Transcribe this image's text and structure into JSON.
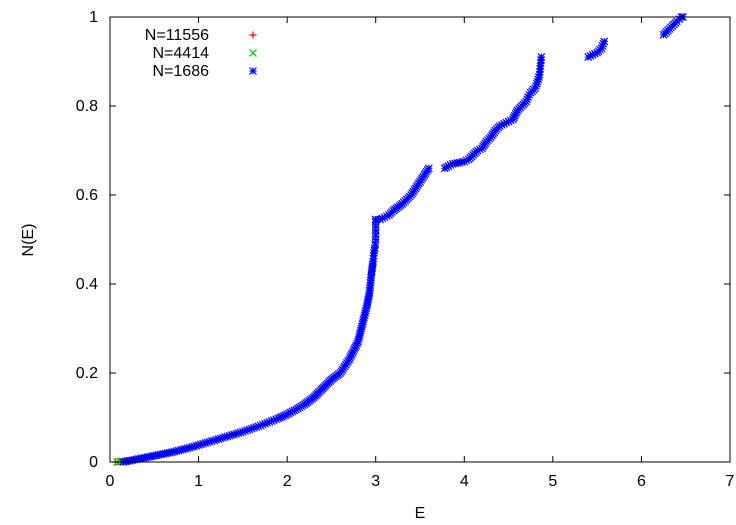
{
  "chart_data": {
    "type": "scatter",
    "title": "",
    "xlabel": "E",
    "ylabel": "N(E)",
    "xlim": [
      0,
      7
    ],
    "ylim": [
      0,
      1
    ],
    "xticks": [
      "0",
      "1",
      "2",
      "3",
      "4",
      "5",
      "6",
      "7"
    ],
    "yticks": [
      "0",
      "0.2",
      "0.4",
      "0.6",
      "0.8",
      "1"
    ],
    "grid": false,
    "legend_position": "top-left",
    "series": [
      {
        "name": "N=11556",
        "marker": "+",
        "color": "#ff0000",
        "x": [
          0.06,
          0.09,
          0.12,
          0.15
        ],
        "y": [
          0.0,
          0.0005,
          0.001,
          0.0015
        ]
      },
      {
        "name": "N=4414",
        "marker": "x",
        "color": "#00c000",
        "x": [
          0.08,
          0.11,
          0.14,
          0.18,
          0.22
        ],
        "y": [
          0.0,
          0.001,
          0.0015,
          0.002,
          0.003
        ]
      },
      {
        "name": "N=1686",
        "marker": "*",
        "color": "#0000ff",
        "x": [
          0.15,
          0.2,
          0.3,
          0.4,
          0.5,
          0.6,
          0.7,
          0.8,
          0.9,
          1.0,
          1.1,
          1.2,
          1.3,
          1.4,
          1.5,
          1.6,
          1.7,
          1.8,
          1.9,
          2.0,
          2.1,
          2.2,
          2.3,
          2.4,
          2.5,
          2.6,
          2.7,
          2.75,
          2.8,
          2.85,
          2.9,
          2.93,
          2.95,
          2.97,
          2.98,
          2.99,
          2.995,
          3.0,
          3.0,
          3.0,
          3.0,
          3.0,
          3.0,
          3.0,
          3.05,
          3.1,
          3.15,
          3.2,
          3.3,
          3.35,
          3.4,
          3.45,
          3.5,
          3.55,
          3.6,
          3.78,
          3.82,
          3.87,
          4.0,
          4.05,
          4.1,
          4.15,
          4.2,
          4.25,
          4.3,
          4.35,
          4.4,
          4.45,
          4.5,
          4.55,
          4.6,
          4.65,
          4.7,
          4.72,
          4.75,
          4.8,
          4.82,
          4.85,
          4.86,
          4.87,
          5.4,
          5.45,
          5.5,
          5.55,
          5.58,
          6.25,
          6.3,
          6.35,
          6.4,
          6.43,
          6.45,
          6.47
        ],
        "y": [
          0.0,
          0.002,
          0.006,
          0.01,
          0.014,
          0.018,
          0.022,
          0.027,
          0.032,
          0.038,
          0.044,
          0.05,
          0.056,
          0.062,
          0.068,
          0.075,
          0.082,
          0.09,
          0.098,
          0.107,
          0.118,
          0.13,
          0.145,
          0.165,
          0.185,
          0.2,
          0.23,
          0.25,
          0.27,
          0.31,
          0.35,
          0.38,
          0.42,
          0.45,
          0.47,
          0.48,
          0.49,
          0.5,
          0.51,
          0.52,
          0.53,
          0.54,
          0.545,
          0.545,
          0.545,
          0.55,
          0.555,
          0.565,
          0.58,
          0.59,
          0.6,
          0.615,
          0.63,
          0.645,
          0.66,
          0.66,
          0.665,
          0.67,
          0.675,
          0.68,
          0.69,
          0.7,
          0.705,
          0.72,
          0.73,
          0.745,
          0.755,
          0.76,
          0.765,
          0.77,
          0.79,
          0.8,
          0.81,
          0.82,
          0.83,
          0.84,
          0.85,
          0.87,
          0.89,
          0.91,
          0.91,
          0.915,
          0.92,
          0.93,
          0.945,
          0.96,
          0.97,
          0.98,
          0.99,
          0.995,
          1.0,
          1.0
        ]
      }
    ]
  }
}
